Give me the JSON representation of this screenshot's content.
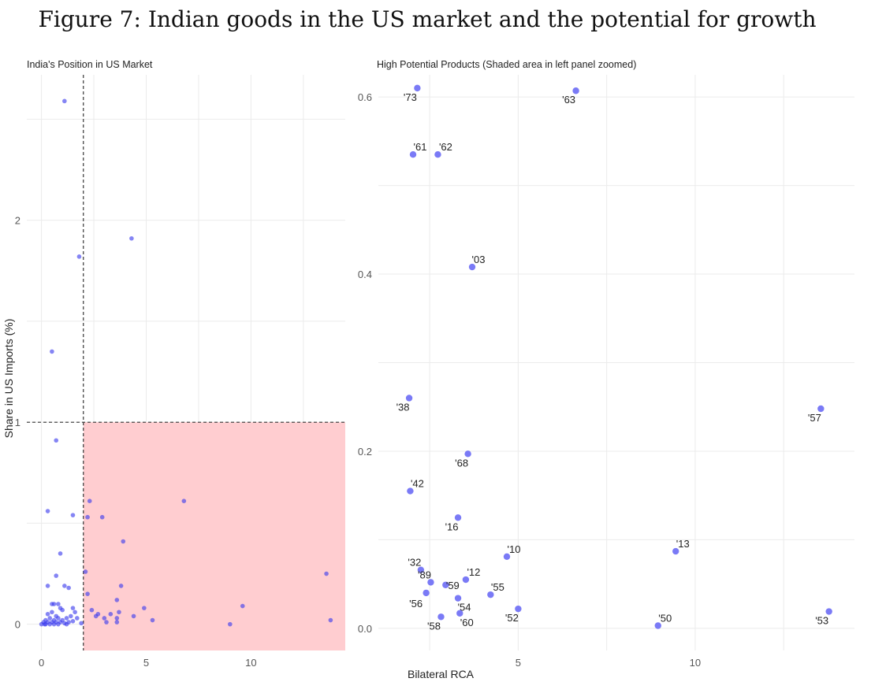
{
  "figure_title": "Figure 7: Indian goods in the US market and the potential for growth",
  "colors": {
    "point": "#6b6bf5",
    "point_left": "#3a3aee",
    "shade": "#ffcdd0",
    "grid": "#ebebeb"
  },
  "chart_data": [
    {
      "type": "scatter",
      "title": "India's Position in US Market",
      "xlabel": "",
      "ylabel": "Share in US Imports (%)",
      "xlim": [
        -0.7,
        14.5
      ],
      "ylim": [
        -0.13,
        2.72
      ],
      "x_ticks": [
        0,
        5,
        10
      ],
      "y_ticks": [
        0,
        1,
        2
      ],
      "grid": true,
      "reference_lines": {
        "vertical_x": 2,
        "horizontal_y": 1
      },
      "shaded_region": {
        "x": [
          2,
          14.5
        ],
        "y": [
          -0.13,
          1
        ]
      },
      "points": [
        {
          "x": 1.1,
          "y": 2.59
        },
        {
          "x": 4.3,
          "y": 1.91
        },
        {
          "x": 1.8,
          "y": 1.82
        },
        {
          "x": 0.5,
          "y": 1.35
        },
        {
          "x": 0.7,
          "y": 0.91
        },
        {
          "x": 0.3,
          "y": 0.56
        },
        {
          "x": 1.5,
          "y": 0.54
        },
        {
          "x": 0.9,
          "y": 0.35
        },
        {
          "x": 0.7,
          "y": 0.24
        },
        {
          "x": 1.1,
          "y": 0.19
        },
        {
          "x": 1.3,
          "y": 0.18
        },
        {
          "x": 0.3,
          "y": 0.19
        },
        {
          "x": 0.5,
          "y": 0.1
        },
        {
          "x": 0.6,
          "y": 0.1
        },
        {
          "x": 0.8,
          "y": 0.1
        },
        {
          "x": 0.9,
          "y": 0.08
        },
        {
          "x": 1.0,
          "y": 0.07
        },
        {
          "x": 1.5,
          "y": 0.08
        },
        {
          "x": 1.6,
          "y": 0.06
        },
        {
          "x": 1.4,
          "y": 0.04
        },
        {
          "x": 0.3,
          "y": 0.05
        },
        {
          "x": 0.5,
          "y": 0.06
        },
        {
          "x": 0.7,
          "y": 0.04
        },
        {
          "x": 1.2,
          "y": 0.03
        },
        {
          "x": 0.2,
          "y": 0.02
        },
        {
          "x": 0.4,
          "y": 0.03
        },
        {
          "x": 0.6,
          "y": 0.02
        },
        {
          "x": 0.8,
          "y": 0.03
        },
        {
          "x": 1.0,
          "y": 0.02
        },
        {
          "x": 1.7,
          "y": 0.03
        },
        {
          "x": 0.1,
          "y": 0.01
        },
        {
          "x": 0.3,
          "y": 0.01
        },
        {
          "x": 0.5,
          "y": 0.01
        },
        {
          "x": 0.7,
          "y": 0.01
        },
        {
          "x": 0.9,
          "y": 0.01
        },
        {
          "x": 1.1,
          "y": 0.005
        },
        {
          "x": 1.3,
          "y": 0.01
        },
        {
          "x": 1.9,
          "y": 0.005
        },
        {
          "x": 0.0,
          "y": 0.0
        },
        {
          "x": 0.2,
          "y": 0.0
        },
        {
          "x": 0.4,
          "y": 0.0
        },
        {
          "x": 0.6,
          "y": 0.0
        },
        {
          "x": 0.8,
          "y": 0.0
        },
        {
          "x": 1.2,
          "y": 0.0
        },
        {
          "x": 1.5,
          "y": 0.015
        },
        {
          "x": 0.15,
          "y": 0.0
        },
        {
          "x": 2.3,
          "y": 0.61
        },
        {
          "x": 6.8,
          "y": 0.61
        },
        {
          "x": 2.2,
          "y": 0.53
        },
        {
          "x": 2.9,
          "y": 0.53
        },
        {
          "x": 3.9,
          "y": 0.41
        },
        {
          "x": 2.1,
          "y": 0.26
        },
        {
          "x": 13.6,
          "y": 0.25
        },
        {
          "x": 3.8,
          "y": 0.19
        },
        {
          "x": 2.2,
          "y": 0.15
        },
        {
          "x": 3.6,
          "y": 0.12
        },
        {
          "x": 4.9,
          "y": 0.08
        },
        {
          "x": 9.6,
          "y": 0.09
        },
        {
          "x": 2.4,
          "y": 0.07
        },
        {
          "x": 2.7,
          "y": 0.05
        },
        {
          "x": 3.3,
          "y": 0.05
        },
        {
          "x": 3.7,
          "y": 0.06
        },
        {
          "x": 2.6,
          "y": 0.04
        },
        {
          "x": 3.0,
          "y": 0.03
        },
        {
          "x": 3.6,
          "y": 0.03
        },
        {
          "x": 4.4,
          "y": 0.04
        },
        {
          "x": 5.3,
          "y": 0.02
        },
        {
          "x": 9.0,
          "y": 0.0
        },
        {
          "x": 13.8,
          "y": 0.02
        },
        {
          "x": 3.1,
          "y": 0.01
        },
        {
          "x": 3.6,
          "y": 0.01
        }
      ]
    },
    {
      "type": "scatter",
      "title": "High Potential Products (Shaded area in left panel zoomed)",
      "xlabel": "Bilateral RCA",
      "ylabel": "",
      "xlim": [
        1.05,
        14.5
      ],
      "ylim": [
        -0.025,
        0.625
      ],
      "x_ticks": [
        5,
        10
      ],
      "y_ticks": [
        0.0,
        0.2,
        0.4,
        0.6
      ],
      "y_tick_labels": [
        "0.0",
        "0.2",
        "0.4",
        "0.6"
      ],
      "grid": true,
      "points": [
        {
          "label": "'73",
          "x": 2.15,
          "y": 0.61
        },
        {
          "label": "'63",
          "x": 6.63,
          "y": 0.607
        },
        {
          "label": "'61",
          "x": 2.03,
          "y": 0.535
        },
        {
          "label": "'62",
          "x": 2.73,
          "y": 0.535
        },
        {
          "label": "'03",
          "x": 3.7,
          "y": 0.408
        },
        {
          "label": "'38",
          "x": 1.92,
          "y": 0.26
        },
        {
          "label": "'57",
          "x": 13.55,
          "y": 0.248
        },
        {
          "label": "'68",
          "x": 3.58,
          "y": 0.197
        },
        {
          "label": "'42",
          "x": 1.95,
          "y": 0.155
        },
        {
          "label": "'16",
          "x": 3.3,
          "y": 0.125
        },
        {
          "label": "'10",
          "x": 4.68,
          "y": 0.081
        },
        {
          "label": "'13",
          "x": 9.45,
          "y": 0.087
        },
        {
          "label": "'32",
          "x": 2.25,
          "y": 0.066
        },
        {
          "label": "'89",
          "x": 2.53,
          "y": 0.052
        },
        {
          "label": "'12",
          "x": 3.52,
          "y": 0.055
        },
        {
          "label": "'59",
          "x": 2.95,
          "y": 0.049
        },
        {
          "label": "'56",
          "x": 2.4,
          "y": 0.04
        },
        {
          "label": "'55",
          "x": 4.22,
          "y": 0.038
        },
        {
          "label": "'54",
          "x": 3.3,
          "y": 0.034
        },
        {
          "label": "'52",
          "x": 5.0,
          "y": 0.022
        },
        {
          "label": "'53",
          "x": 13.78,
          "y": 0.019
        },
        {
          "label": "'58",
          "x": 2.82,
          "y": 0.013
        },
        {
          "label": "'60",
          "x": 3.35,
          "y": 0.017
        },
        {
          "label": "'50",
          "x": 8.95,
          "y": 0.003
        }
      ]
    }
  ]
}
